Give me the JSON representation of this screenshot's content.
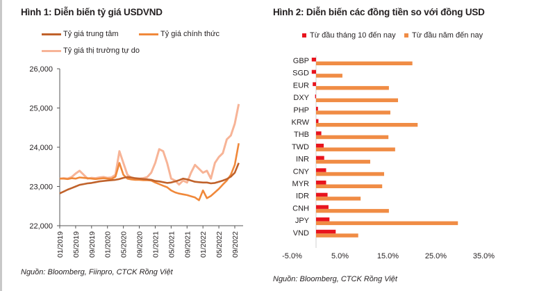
{
  "chart_data": [
    {
      "type": "line",
      "title": "Hình 1: Diễn biến tỷ giá USDVND",
      "xlabel": "",
      "ylabel": "",
      "ylim": [
        22000,
        26000
      ],
      "yticks": [
        "22,000",
        "23,000",
        "24,000",
        "25,000",
        "26,000"
      ],
      "ytick_values": [
        22000,
        23000,
        24000,
        25000,
        26000
      ],
      "xticks": [
        "01/2019",
        "05/2019",
        "09/2019",
        "01/2020",
        "05/2020",
        "09/2020",
        "01/2021",
        "05/2021",
        "09/2021",
        "01/2022",
        "05/2022",
        "09/2022"
      ],
      "x_start": "01/2019",
      "x_step": "month",
      "legend": [
        "Tỷ giá trung tâm",
        "Tỷ giá chính thức",
        "Tỷ giá thị trường tự do"
      ],
      "legend_position": "top",
      "series": [
        {
          "name": "Tỷ giá trung tâm",
          "color": "#c0622b",
          "values": [
            22825,
            22870,
            22920,
            22960,
            23000,
            23040,
            23060,
            23080,
            23090,
            23110,
            23130,
            23140,
            23150,
            23160,
            23170,
            23190,
            23220,
            23240,
            23230,
            23210,
            23200,
            23190,
            23180,
            23170,
            23140,
            23130,
            23110,
            23090,
            23100,
            23130,
            23160,
            23200,
            23180,
            23150,
            23120,
            23110,
            23100,
            23100,
            23080,
            23090,
            23120,
            23150,
            23190,
            23250,
            23350,
            23600
          ]
        },
        {
          "name": "Tỷ giá chính thức",
          "color": "#f0883a",
          "values": [
            23200,
            23200,
            23190,
            23210,
            23200,
            23230,
            23220,
            23210,
            23200,
            23190,
            23200,
            23210,
            23200,
            23190,
            23250,
            23600,
            23300,
            23200,
            23180,
            23170,
            23170,
            23160,
            23160,
            23150,
            23100,
            23060,
            23020,
            22980,
            22900,
            22850,
            22820,
            22800,
            22780,
            22750,
            22720,
            22650,
            22900,
            22700,
            22760,
            22850,
            22940,
            23050,
            23150,
            23300,
            23550,
            24100
          ]
        },
        {
          "name": "Tỷ giá thị trường tự do",
          "color": "#f7b497",
          "values": [
            23200,
            23210,
            23200,
            23240,
            23330,
            23400,
            23300,
            23200,
            23220,
            23210,
            23230,
            23240,
            23220,
            23230,
            23300,
            23900,
            23600,
            23300,
            23220,
            23200,
            23200,
            23210,
            23240,
            23350,
            23600,
            23950,
            23900,
            23600,
            23200,
            23150,
            23050,
            23150,
            23100,
            23350,
            23550,
            23450,
            23350,
            23400,
            23200,
            23600,
            23750,
            23850,
            24200,
            24300,
            24600,
            25100
          ]
        }
      ]
    },
    {
      "type": "bar",
      "orientation": "horizontal",
      "title": "Hình 2: Diễn biến các đồng tiền so với đồng USD",
      "xlabel": "",
      "ylabel": "",
      "xlim": [
        -5.0,
        35.0
      ],
      "xticks": [
        "-5.0%",
        "5.0%",
        "15.0%",
        "25.0%",
        "35.0%"
      ],
      "xtick_values": [
        -5,
        5,
        15,
        25,
        35
      ],
      "categories": [
        "GBP",
        "SGD",
        "EUR",
        "DXY",
        "PHP",
        "KRW",
        "THB",
        "TWD",
        "INR",
        "CNY",
        "MYR",
        "IDR",
        "CNH",
        "JPY",
        "VND"
      ],
      "legend_position": "top",
      "series": [
        {
          "name": "Từ đầu tháng 10 đến nay",
          "color": "#e8141e",
          "values": [
            -0.9,
            -0.9,
            -0.7,
            -0.2,
            0.4,
            0.5,
            1.1,
            1.6,
            1.7,
            2.1,
            2.1,
            2.4,
            2.6,
            2.8,
            4.1
          ]
        },
        {
          "name": "Từ đầu năm đến nay",
          "color": "#f08c45",
          "values": [
            20.1,
            5.5,
            15.2,
            17.1,
            15.5,
            21.2,
            15.1,
            16.5,
            11.3,
            14.2,
            13.8,
            9.3,
            15.2,
            29.6,
            8.8
          ]
        }
      ]
    }
  ],
  "sources": {
    "left": "Nguồn:  Bloomberg, Fiinpro, CTCK Rồng Việt",
    "right": "Nguồn:  Bloomberg, CTCK Rồng Việt"
  }
}
